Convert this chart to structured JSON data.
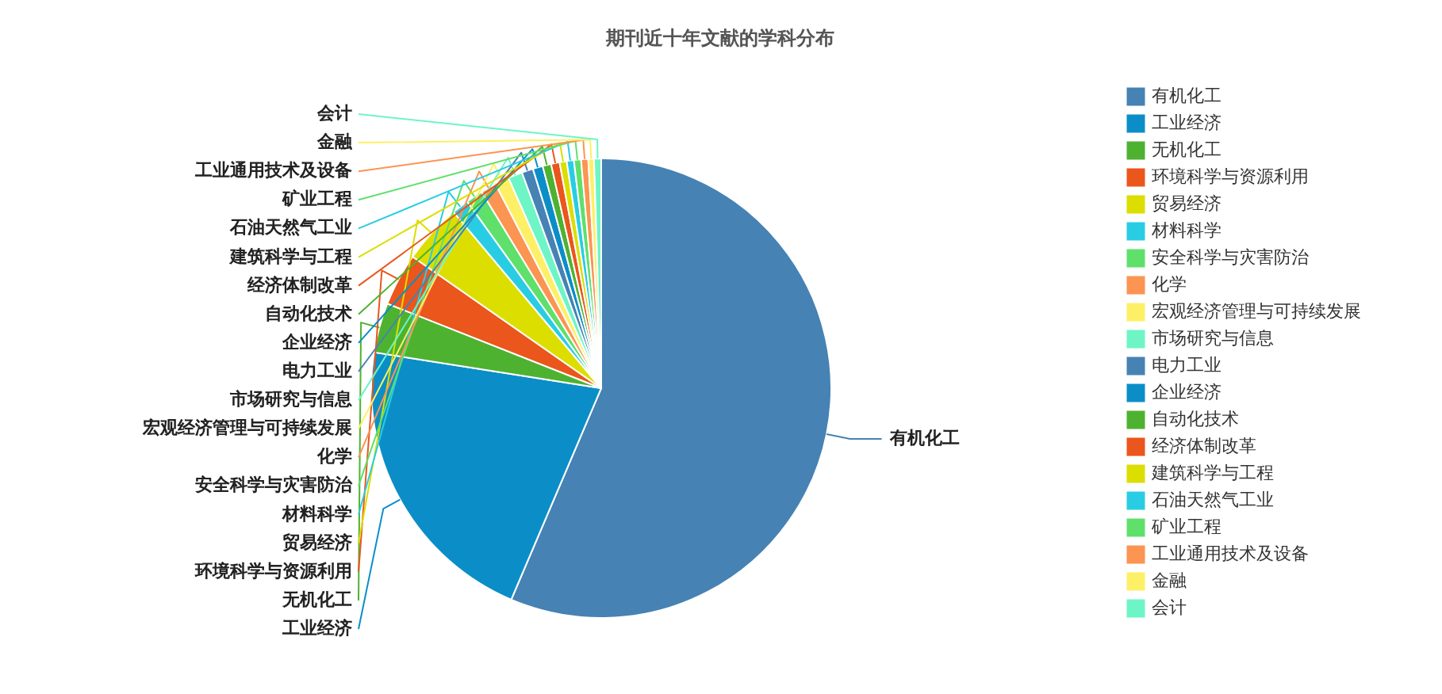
{
  "chart_data": {
    "type": "pie",
    "title": "期刊近十年文献的学科分布",
    "categories": [
      "有机化工",
      "工业经济",
      "无机化工",
      "环境科学与资源利用",
      "贸易经济",
      "材料科学",
      "安全科学与灾害防治",
      "化学",
      "宏观经济管理与可持续发展",
      "市场研究与信息",
      "电力工业",
      "企业经济",
      "自动化技术",
      "经济体制改革",
      "建筑科学与工程",
      "石油天然气工业",
      "矿业工程",
      "工业通用技术及设备",
      "金融",
      "会计"
    ],
    "values": [
      56.4,
      21.1,
      3.5,
      3.7,
      4.2,
      1.2,
      1.2,
      1.1,
      1.0,
      1.0,
      0.8,
      0.7,
      0.6,
      0.6,
      0.5,
      0.5,
      0.5,
      0.5,
      0.4,
      0.5
    ],
    "colors": [
      "#4682b4",
      "#0b8ec7",
      "#4eb231",
      "#ea561c",
      "#dcde00",
      "#28cde3",
      "#5fe06b",
      "#fc9452",
      "#fdf066",
      "#6ef5c6",
      "#4682b4",
      "#0b8ec7",
      "#4eb231",
      "#ea561c",
      "#dcde00",
      "#28cde3",
      "#5fe06b",
      "#fc9452",
      "#fdf066",
      "#6ef5c6"
    ],
    "legend": "right"
  }
}
